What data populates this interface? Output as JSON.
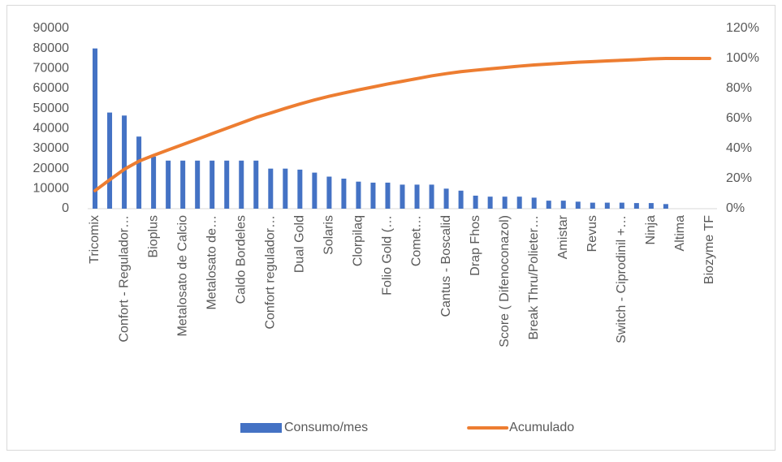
{
  "chart_data": {
    "type": "bar",
    "categories": [
      "Tricomix",
      null,
      "Confort - Regulador…",
      null,
      "Bioplus",
      null,
      "Metalosato de Calcio",
      null,
      "Metalosato de…",
      null,
      "Caldo Bordeles",
      null,
      "Confort regulador…",
      null,
      "Dual Gold",
      null,
      "Solaris",
      null,
      "Clorpilaq",
      null,
      "Folio Gold (…",
      null,
      "Comet…",
      null,
      "Cantus - Boscalid",
      null,
      "Drap Fhos",
      null,
      "Score ( Difenoconazol)",
      null,
      "Break Thru/Polieter…",
      null,
      "Amistar",
      null,
      "Revus",
      null,
      "Switch - Ciprodinil +…",
      null,
      "Ninja",
      null,
      "Altima",
      null,
      "Biozyme TF"
    ],
    "series": [
      {
        "name": "Consumo/mes",
        "type": "bar",
        "color": "#4472c4",
        "values": [
          80000,
          48000,
          46500,
          36000,
          26000,
          24000,
          24000,
          24000,
          24000,
          24000,
          24000,
          24000,
          20000,
          20000,
          19500,
          18000,
          16000,
          15000,
          13500,
          13000,
          13000,
          12000,
          12000,
          12000,
          10000,
          9000,
          6500,
          6000,
          6000,
          6000,
          5500,
          4000,
          4000,
          3500,
          3000,
          3000,
          3000,
          2800,
          2800,
          2300,
          0,
          0,
          0
        ]
      },
      {
        "name": "Acumulado",
        "type": "line",
        "axis": "y2",
        "color": "#ed7d31",
        "values": [
          12.0,
          19.2,
          26.2,
          31.6,
          35.5,
          39.1,
          42.7,
          46.3,
          49.9,
          53.5,
          57.1,
          60.7,
          63.7,
          66.8,
          69.7,
          72.4,
          74.8,
          77.0,
          79.1,
          81.0,
          83.0,
          84.8,
          86.6,
          88.4,
          89.9,
          91.2,
          92.2,
          93.1,
          94.0,
          94.9,
          95.7,
          96.3,
          96.9,
          97.5,
          97.9,
          98.4,
          98.8,
          99.2,
          99.7,
          100,
          100,
          100,
          100
        ]
      }
    ],
    "ylim": [
      0,
      90000
    ],
    "yticks": [
      0,
      10000,
      20000,
      30000,
      40000,
      50000,
      60000,
      70000,
      80000,
      90000
    ],
    "y2lim": [
      0,
      120
    ],
    "y2ticks": [
      {
        "value": 0,
        "label": "0%"
      },
      {
        "value": 20,
        "label": "20%"
      },
      {
        "value": 40,
        "label": "40%"
      },
      {
        "value": 60,
        "label": "60%"
      },
      {
        "value": 80,
        "label": "80%"
      },
      {
        "value": 100,
        "label": "100%"
      },
      {
        "value": 120,
        "label": "120%"
      }
    ],
    "grid": false,
    "legend": "bottom"
  }
}
